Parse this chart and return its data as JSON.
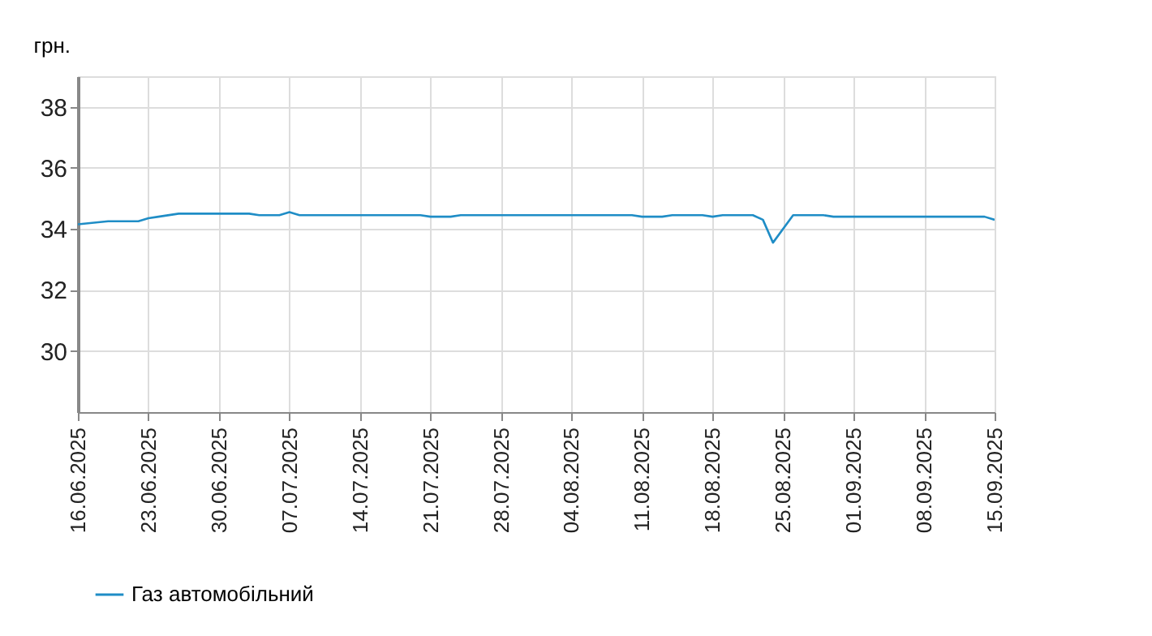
{
  "chart_data": {
    "type": "line",
    "ylabel": "грн.",
    "ylim": [
      28,
      39
    ],
    "yticks": [
      30,
      32,
      34,
      36,
      38
    ],
    "xlim": [
      "2025-06-16",
      "2025-09-15"
    ],
    "xticks": [
      {
        "value": "2025-06-16",
        "label": "16.06.2025"
      },
      {
        "value": "2025-06-23",
        "label": "23.06.2025"
      },
      {
        "value": "2025-06-30",
        "label": "30.06.2025"
      },
      {
        "value": "2025-07-07",
        "label": "07.07.2025"
      },
      {
        "value": "2025-07-14",
        "label": "14.07.2025"
      },
      {
        "value": "2025-07-21",
        "label": "21.07.2025"
      },
      {
        "value": "2025-07-28",
        "label": "28.07.2025"
      },
      {
        "value": "2025-08-04",
        "label": "04.08.2025"
      },
      {
        "value": "2025-08-11",
        "label": "11.08.2025"
      },
      {
        "value": "2025-08-18",
        "label": "18.08.2025"
      },
      {
        "value": "2025-08-25",
        "label": "25.08.2025"
      },
      {
        "value": "2025-09-01",
        "label": "01.09.2025"
      },
      {
        "value": "2025-09-08",
        "label": "08.09.2025"
      },
      {
        "value": "2025-09-15",
        "label": "15.09.2025"
      }
    ],
    "grid": true,
    "legend": "bottom left",
    "marker": "none",
    "line_style": "solid",
    "series": [
      {
        "name": "Газ автомобільний",
        "color": "#1f8dc6",
        "x": [
          "2025-06-16",
          "2025-06-19",
          "2025-06-22",
          "2025-06-23",
          "2025-06-24",
          "2025-06-26",
          "2025-07-03",
          "2025-07-04",
          "2025-07-06",
          "2025-07-07",
          "2025-07-08",
          "2025-07-20",
          "2025-07-21",
          "2025-07-23",
          "2025-07-24",
          "2025-08-10",
          "2025-08-11",
          "2025-08-13",
          "2025-08-14",
          "2025-08-17",
          "2025-08-18",
          "2025-08-19",
          "2025-08-22",
          "2025-08-23",
          "2025-08-24",
          "2025-08-26",
          "2025-08-29",
          "2025-08-30",
          "2025-09-14",
          "2025-09-15"
        ],
        "values": [
          34.15,
          34.25,
          34.25,
          34.35,
          34.4,
          34.5,
          34.5,
          34.45,
          34.45,
          34.55,
          34.45,
          34.45,
          34.4,
          34.4,
          34.45,
          34.45,
          34.4,
          34.4,
          34.45,
          34.45,
          34.4,
          34.45,
          34.45,
          34.3,
          33.55,
          34.45,
          34.45,
          34.4,
          34.4,
          34.3
        ]
      }
    ]
  }
}
